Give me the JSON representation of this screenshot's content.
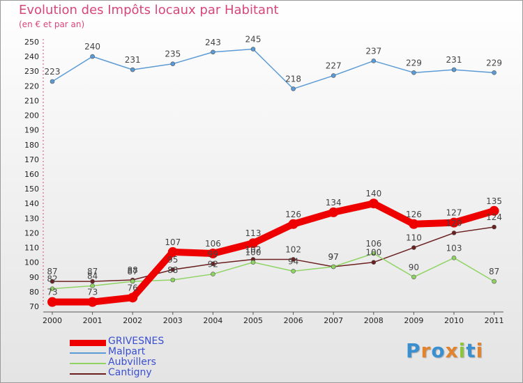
{
  "chart_data": {
    "type": "line",
    "title": "Evolution des Impôts locaux par Habitant",
    "subtitle": "(en € et par an)",
    "xlabel": "",
    "ylabel": "",
    "ylim": [
      70,
      250
    ],
    "yticks": [
      70,
      80,
      90,
      100,
      110,
      120,
      130,
      140,
      150,
      160,
      170,
      180,
      190,
      200,
      210,
      220,
      230,
      240,
      250
    ],
    "categories": [
      "2000",
      "2001",
      "2002",
      "2003",
      "2004",
      "2005",
      "2006",
      "2007",
      "2008",
      "2009",
      "2010",
      "2011"
    ],
    "grid": false,
    "legend_position": "bottom-left",
    "series": [
      {
        "name": "GRIVESNES",
        "color": "#ee0000",
        "values": [
          73,
          73,
          76,
          107,
          106,
          113,
          126,
          134,
          140,
          126,
          127,
          135
        ]
      },
      {
        "name": "Malpart",
        "color": "#5b9bd5",
        "values": [
          223,
          240,
          231,
          235,
          243,
          245,
          218,
          227,
          237,
          229,
          231,
          229
        ]
      },
      {
        "name": "Aubvillers",
        "color": "#8fd463",
        "values": [
          82,
          84,
          87,
          88,
          92,
          100,
          94,
          97,
          106,
          90,
          103,
          87
        ]
      },
      {
        "name": "Cantigny",
        "color": "#6b1f1f",
        "values": [
          87,
          87,
          88,
          95,
          99,
          102,
          102,
          97,
          100,
          110,
          120,
          124
        ]
      }
    ]
  },
  "logo": {
    "text": "Proxiti",
    "letters": [
      "P",
      "r",
      "o",
      "x",
      "i",
      "t",
      "i"
    ],
    "colors": [
      "#3a8fd0",
      "#e2842e",
      "#3a8fd0",
      "#e2842e",
      "#8cc63f",
      "#3a8fd0",
      "#e2842e"
    ]
  }
}
